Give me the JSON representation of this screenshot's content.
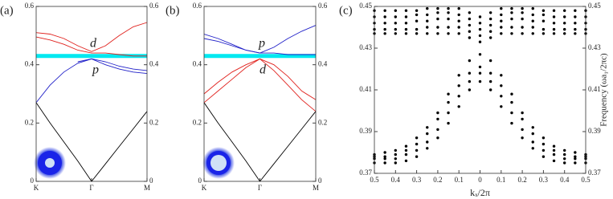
{
  "chart_data": [
    {
      "type": "line",
      "label": "(a)",
      "x": [
        0,
        0.25,
        0.5,
        0.75,
        1,
        1.25,
        1.5,
        1.75,
        2
      ],
      "xlim": [
        0,
        2
      ],
      "xticks": [
        {
          "value": 0,
          "label": "K"
        },
        {
          "value": 1,
          "label": "Γ"
        },
        {
          "value": 2,
          "label": "M"
        }
      ],
      "ylim": [
        0,
        0.6
      ],
      "yticks": [
        0,
        0.2,
        0.4,
        0.6
      ],
      "band": {
        "value": 0.43,
        "color": "#00e8f0"
      },
      "annotations": [
        {
          "text": "d",
          "color": "#e0201c"
        },
        {
          "text": "p",
          "color": "#2020c8"
        }
      ],
      "series": [
        {
          "color": "#000000",
          "values": [
            0.27,
            0.2,
            0.135,
            0.07,
            0,
            0.06,
            0.12,
            0.18,
            0.24
          ]
        },
        {
          "color": "#2020c8",
          "values": [
            0.27,
            0.33,
            0.375,
            0.405,
            0.42,
            0.41,
            0.395,
            0.385,
            0.38
          ]
        },
        {
          "color": "#2020c8",
          "values": [
            null,
            null,
            null,
            0.41,
            0.42,
            0.4,
            0.385,
            0.375,
            0.37
          ]
        },
        {
          "color": "#e0201c",
          "values": [
            0.51,
            0.505,
            0.49,
            0.465,
            0.445,
            0.465,
            0.5,
            0.53,
            0.545
          ]
        },
        {
          "color": "#e0201c",
          "values": [
            0.495,
            0.485,
            0.47,
            0.45,
            0.44,
            0.44,
            0.435,
            0.43,
            0.43
          ]
        }
      ]
    },
    {
      "type": "line",
      "label": "(b)",
      "x": [
        0,
        0.25,
        0.5,
        0.75,
        1,
        1.25,
        1.5,
        1.75,
        2
      ],
      "xlim": [
        0,
        2
      ],
      "xticks": [
        {
          "value": 0,
          "label": "K"
        },
        {
          "value": 1,
          "label": "Γ"
        },
        {
          "value": 2,
          "label": "M"
        }
      ],
      "ylim": [
        0,
        0.6
      ],
      "yticks": [
        0,
        0.2,
        0.4,
        0.6
      ],
      "band": {
        "value": 0.43,
        "color": "#00e8f0"
      },
      "annotations": [
        {
          "text": "p",
          "color": "#2020c8"
        },
        {
          "text": "d",
          "color": "#e0201c"
        }
      ],
      "series": [
        {
          "color": "#000000",
          "values": [
            0.27,
            0.2,
            0.135,
            0.07,
            0,
            0.06,
            0.12,
            0.18,
            0.24
          ]
        },
        {
          "color": "#e0201c",
          "values": [
            0.3,
            0.34,
            0.375,
            0.4,
            0.42,
            0.4,
            0.36,
            0.31,
            0.28
          ]
        },
        {
          "color": "#e0201c",
          "values": [
            0.27,
            0.31,
            0.35,
            0.39,
            0.42,
            0.38,
            0.33,
            0.28,
            0.24
          ]
        },
        {
          "color": "#2020c8",
          "values": [
            0.505,
            0.49,
            0.47,
            0.45,
            0.44,
            0.46,
            0.49,
            0.515,
            0.535
          ]
        },
        {
          "color": "#2020c8",
          "values": [
            0.49,
            0.48,
            0.465,
            0.45,
            0.44,
            0.44,
            0.435,
            0.435,
            0.435
          ]
        }
      ]
    },
    {
      "type": "scatter",
      "label": "(c)",
      "xlabel": "kₓ/2π",
      "ylabel": "Frequency (ωa₁/2πc)",
      "x": [
        -0.5,
        -0.45,
        -0.4,
        -0.35,
        -0.3,
        -0.25,
        -0.2,
        -0.15,
        -0.1,
        -0.05,
        0,
        0.05,
        0.1,
        0.15,
        0.2,
        0.25,
        0.3,
        0.35,
        0.4,
        0.45,
        0.5
      ],
      "xlim": [
        -0.5,
        0.5
      ],
      "xticks": [
        {
          "value": -0.5,
          "label": "0.5"
        },
        {
          "value": -0.4,
          "label": "0.4"
        },
        {
          "value": -0.3,
          "label": "0.3"
        },
        {
          "value": -0.2,
          "label": "0.2"
        },
        {
          "value": -0.1,
          "label": "0.1"
        },
        0,
        0.1,
        0.2,
        0.3,
        0.4,
        0.5
      ],
      "ylim": [
        0.37,
        0.45
      ],
      "yticks": [
        0.37,
        0.39,
        0.41,
        0.43,
        0.45
      ],
      "series": [
        {
          "color": "#000000",
          "values": [
            0.379,
            0.38,
            0.381,
            0.383,
            0.387,
            0.392,
            0.399,
            0.408,
            0.417,
            0.424,
            0.427,
            0.424,
            0.417,
            0.408,
            0.399,
            0.392,
            0.387,
            0.383,
            0.381,
            0.38,
            0.379
          ]
        },
        {
          "color": "#000000",
          "values": [
            0.378,
            0.378,
            0.379,
            0.381,
            0.384,
            0.389,
            0.396,
            0.404,
            0.412,
            0.418,
            0.421,
            0.418,
            0.412,
            0.404,
            0.396,
            0.389,
            0.384,
            0.381,
            0.379,
            0.378,
            0.378
          ]
        },
        {
          "color": "#000000",
          "values": [
            0.377,
            0.377,
            0.377,
            0.379,
            0.381,
            0.385,
            0.391,
            0.399,
            0.407,
            0.414,
            0.418,
            0.414,
            0.407,
            0.399,
            0.391,
            0.385,
            0.381,
            0.379,
            0.377,
            0.377,
            0.377
          ]
        },
        {
          "color": "#000000",
          "values": [
            0.375,
            0.375,
            0.375,
            0.376,
            0.378,
            0.382,
            0.387,
            0.394,
            0.402,
            0.41,
            0.414,
            0.41,
            0.402,
            0.394,
            0.387,
            0.382,
            0.378,
            0.376,
            0.375,
            0.375,
            0.375
          ]
        },
        {
          "color": "#000000",
          "values": [
            0.437,
            0.437,
            0.437,
            0.437,
            0.437,
            0.437,
            0.437,
            0.437,
            0.437,
            0.435,
            0.433,
            0.435,
            0.437,
            0.437,
            0.437,
            0.437,
            0.437,
            0.437,
            0.437,
            0.437,
            0.437
          ]
        },
        {
          "color": "#000000",
          "values": [
            0.439,
            0.439,
            0.439,
            0.439,
            0.439,
            0.44,
            0.44,
            0.44,
            0.44,
            0.438,
            0.436,
            0.438,
            0.44,
            0.44,
            0.44,
            0.44,
            0.439,
            0.439,
            0.439,
            0.439,
            0.439
          ]
        },
        {
          "color": "#000000",
          "values": [
            0.442,
            0.442,
            0.442,
            0.442,
            0.443,
            0.443,
            0.444,
            0.444,
            0.443,
            0.441,
            0.439,
            0.441,
            0.443,
            0.444,
            0.444,
            0.443,
            0.443,
            0.442,
            0.442,
            0.442,
            0.442
          ]
        },
        {
          "color": "#000000",
          "values": [
            0.445,
            0.445,
            0.445,
            0.445,
            0.446,
            0.446,
            0.447,
            0.447,
            0.446,
            0.444,
            0.442,
            0.444,
            0.446,
            0.447,
            0.447,
            0.446,
            0.446,
            0.445,
            0.445,
            0.445,
            0.445
          ]
        },
        {
          "color": "#000000",
          "values": [
            0.448,
            0.448,
            0.448,
            0.448,
            0.448,
            0.449,
            0.449,
            0.449,
            0.449,
            0.447,
            0.445,
            0.447,
            0.449,
            0.449,
            0.449,
            0.449,
            0.448,
            0.448,
            0.448,
            0.448,
            0.448
          ]
        }
      ]
    }
  ]
}
